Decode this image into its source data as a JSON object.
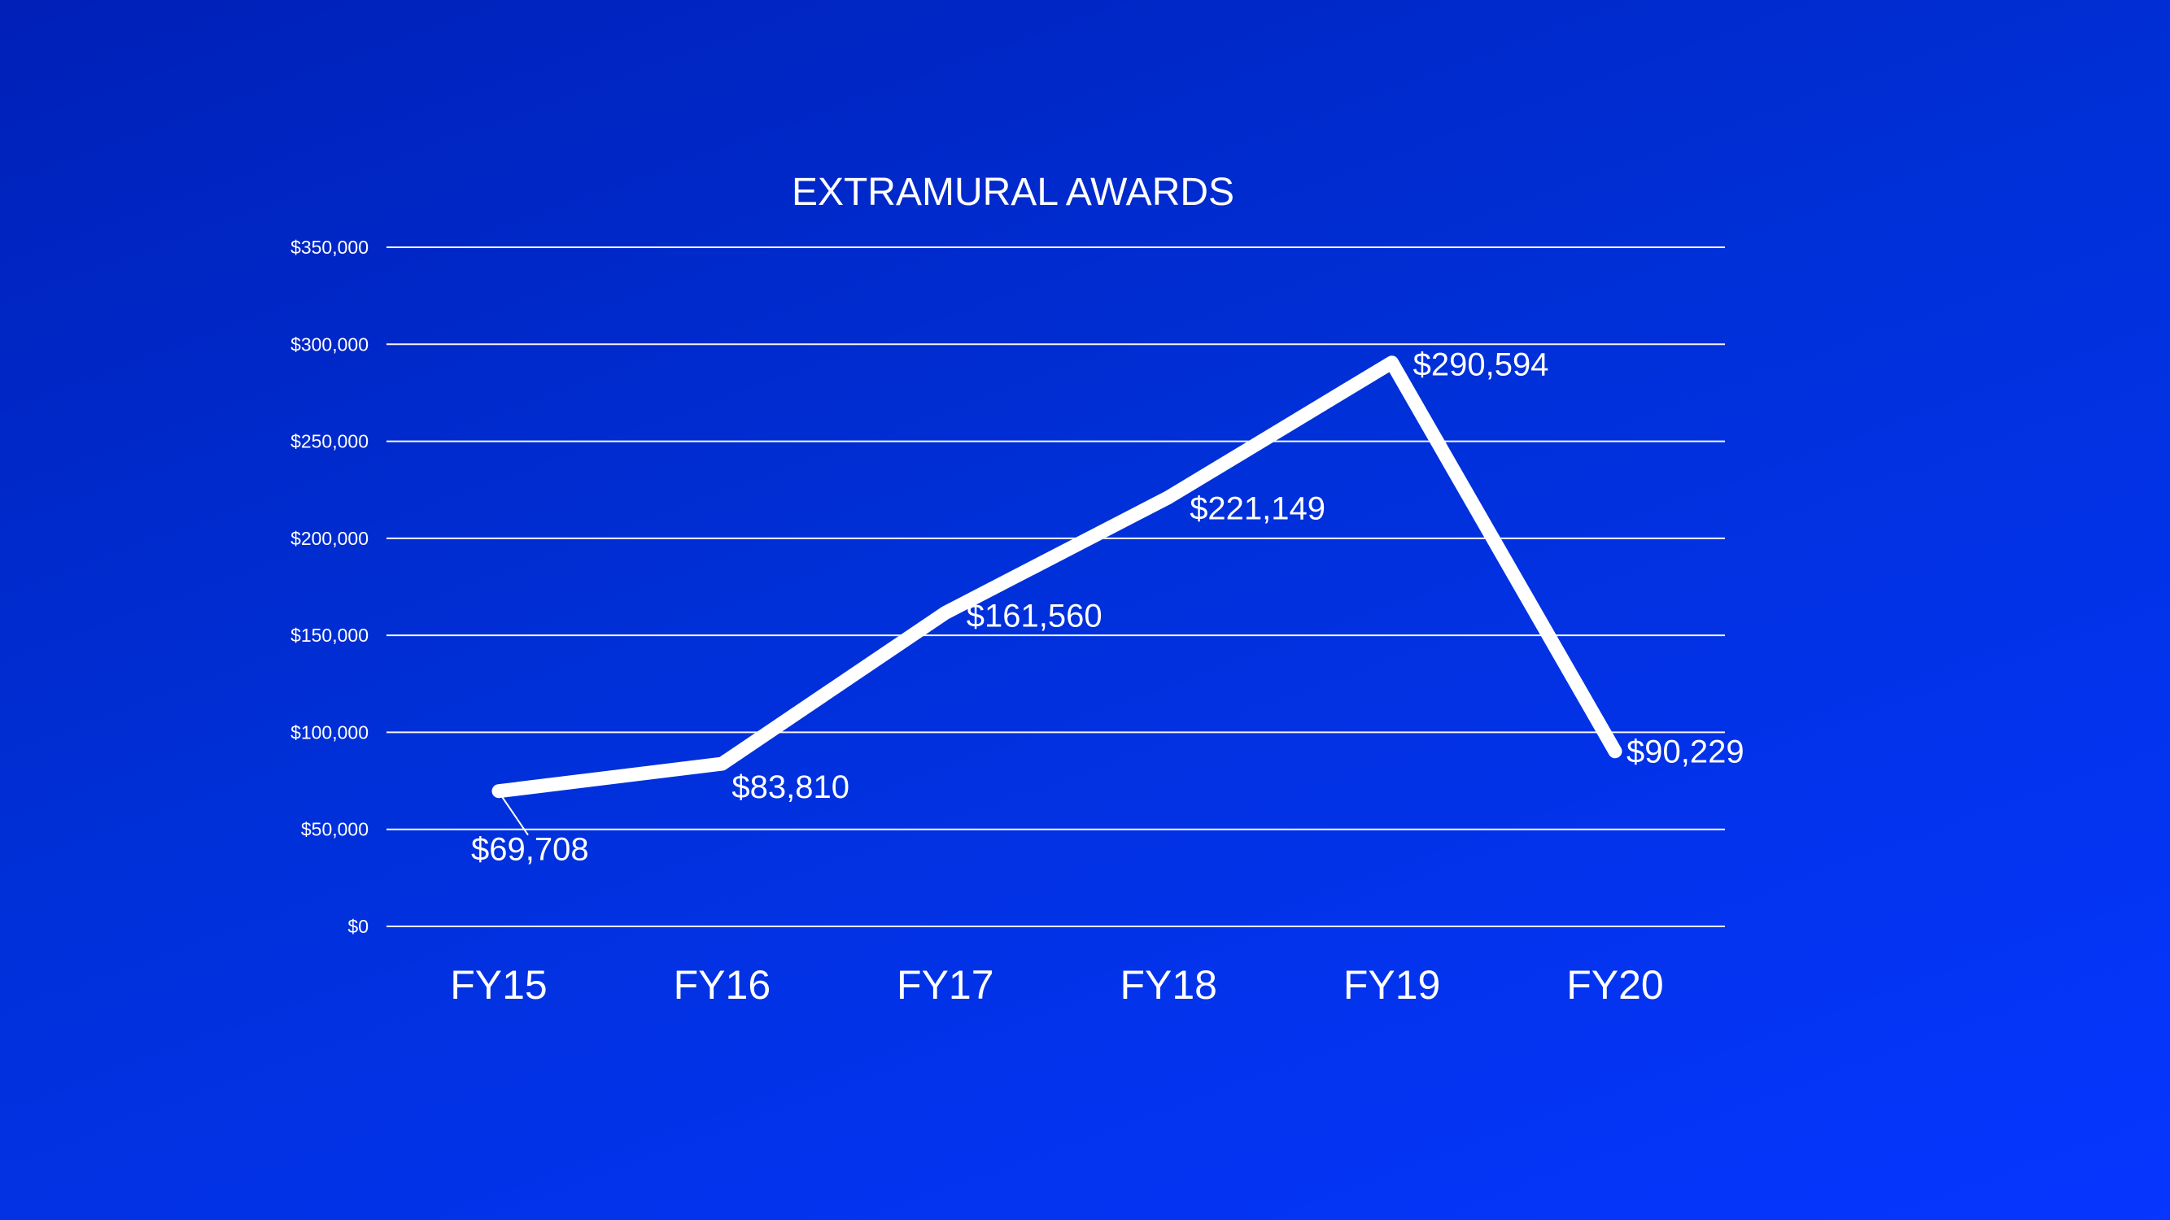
{
  "chart_data": {
    "type": "line",
    "title": "EXTRAMURAL AWARDS",
    "categories": [
      "FY15",
      "FY16",
      "FY17",
      "FY18",
      "FY19",
      "FY20"
    ],
    "values": [
      69708,
      83810,
      161560,
      221149,
      290594,
      90229
    ],
    "data_labels": [
      "$69,708",
      "$83,810",
      "$161,560",
      "$221,149",
      "$290,594",
      "$90,229"
    ],
    "y_ticks": [
      0,
      50000,
      100000,
      150000,
      200000,
      250000,
      300000,
      350000
    ],
    "y_tick_labels": [
      "$0",
      "$50,000",
      "$100,000",
      "$150,000",
      "$200,000",
      "$250,000",
      "$300,000",
      "$350,000"
    ],
    "ylim": [
      0,
      350000
    ],
    "xlabel": "",
    "ylabel": "",
    "grid": true,
    "legend": "none",
    "colors": {
      "line": "#ffffff",
      "background": "#0030d8"
    }
  }
}
